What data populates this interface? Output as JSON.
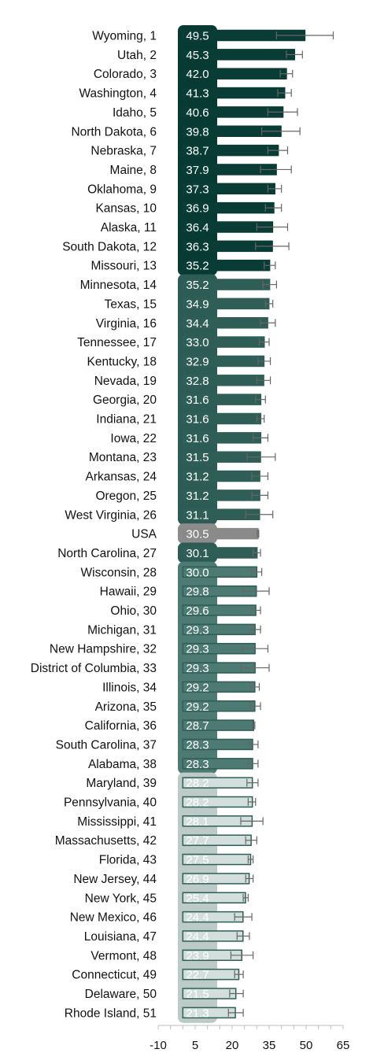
{
  "chart_data": {
    "type": "bar",
    "orientation": "horizontal",
    "categories": [
      "Wyoming, 1",
      "Utah, 2",
      "Colorado, 3",
      "Washington, 4",
      "Idaho, 5",
      "North Dakota, 6",
      "Nebraska, 7",
      "Maine, 8",
      "Oklahoma, 9",
      "Kansas, 10",
      "Alaska, 11",
      "South Dakota, 12",
      "Missouri, 13",
      "Minnesota, 14",
      "Texas, 15",
      "Virginia, 16",
      "Tennessee, 17",
      "Kentucky, 18",
      "Nevada, 19",
      "Georgia, 20",
      "Indiana, 21",
      "Iowa, 22",
      "Montana, 23",
      "Arkansas, 24",
      "Oregon, 25",
      "West Virginia, 26",
      "USA",
      "North Carolina, 27",
      "Wisconsin, 28",
      "Hawaii, 29",
      "Ohio, 30",
      "Michigan, 31",
      "New Hampshire, 32",
      "District of Columbia, 33",
      "Illinois, 34",
      "Arizona, 35",
      "California, 36",
      "South Carolina, 37",
      "Alabama, 38",
      "Maryland, 39",
      "Pennsylvania, 40",
      "Mississippi, 41",
      "Massachusetts, 42",
      "Florida, 43",
      "New Jersey, 44",
      "New York, 45",
      "New Mexico, 46",
      "Louisiana, 47",
      "Vermont, 48",
      "Connecticut, 49",
      "Delaware, 50",
      "Rhode Island, 51"
    ],
    "values": [
      49.5,
      45.3,
      42.0,
      41.3,
      40.6,
      39.8,
      38.7,
      37.9,
      37.3,
      36.9,
      36.4,
      36.3,
      35.2,
      35.2,
      34.9,
      34.4,
      33.0,
      32.9,
      32.8,
      31.6,
      31.6,
      31.6,
      31.5,
      31.2,
      31.2,
      31.1,
      30.5,
      30.1,
      30.0,
      29.8,
      29.6,
      29.3,
      29.3,
      29.3,
      29.2,
      29.2,
      28.7,
      28.3,
      28.3,
      28.2,
      28.2,
      28.1,
      27.7,
      27.5,
      26.9,
      25.4,
      24.4,
      24.4,
      23.9,
      22.7,
      21.5,
      21.3
    ],
    "value_labels": [
      "49.5",
      "45.3",
      "42.0",
      "41.3",
      "40.6",
      "39.8",
      "38.7",
      "37.9",
      "37.3",
      "36.9",
      "36.4",
      "36.3",
      "35.2",
      "35.2",
      "34.9",
      "34.4",
      "33.0",
      "32.9",
      "32.8",
      "31.6",
      "31.6",
      "31.6",
      "31.5",
      "31.2",
      "31.2",
      "31.1",
      "30.5",
      "30.1",
      "30.0",
      "29.8",
      "29.6",
      "29.3",
      "29.3",
      "29.3",
      "29.2",
      "29.2",
      "28.7",
      "28.3",
      "28.3",
      "28.2",
      "28.2",
      "28.1",
      "27.7",
      "27.5",
      "26.9",
      "25.4",
      "24.4",
      "24.4",
      "23.9",
      "22.7",
      "21.5",
      "21.3"
    ],
    "error_low": [
      38.0,
      42.0,
      39.5,
      38.5,
      34.5,
      32.0,
      34.5,
      31.5,
      34.5,
      33.5,
      30.0,
      29.5,
      33.0,
      32.5,
      33.5,
      31.5,
      31.0,
      30.5,
      30.0,
      29.5,
      30.0,
      28.5,
      26.0,
      28.0,
      28.0,
      25.5,
      30.2,
      28.5,
      28.0,
      24.5,
      28.0,
      27.5,
      24.0,
      23.5,
      27.5,
      27.5,
      28.2,
      27.0,
      26.5,
      26.0,
      26.5,
      23.5,
      25.5,
      26.5,
      25.5,
      24.5,
      21.0,
      22.0,
      19.5,
      21.0,
      19.0,
      18.5
    ],
    "error_high": [
      61.0,
      48.5,
      44.5,
      44.0,
      46.5,
      47.5,
      42.5,
      44.0,
      40.0,
      40.0,
      42.5,
      43.0,
      37.5,
      38.0,
      36.5,
      37.5,
      35.0,
      35.5,
      35.5,
      33.5,
      33.0,
      34.5,
      37.5,
      34.5,
      34.5,
      36.5,
      30.8,
      31.5,
      32.0,
      35.0,
      31.5,
      31.5,
      34.5,
      35.0,
      31.0,
      31.5,
      29.2,
      30.5,
      30.5,
      30.5,
      29.5,
      32.5,
      30.0,
      28.5,
      28.5,
      26.5,
      28.0,
      27.0,
      28.5,
      24.5,
      24.5,
      24.5
    ],
    "color_groups": [
      0,
      0,
      0,
      0,
      0,
      0,
      0,
      0,
      0,
      0,
      0,
      0,
      0,
      1,
      1,
      1,
      1,
      1,
      1,
      1,
      1,
      1,
      1,
      1,
      1,
      1,
      3,
      1,
      2,
      2,
      2,
      2,
      2,
      2,
      2,
      2,
      2,
      2,
      2,
      4,
      4,
      4,
      4,
      4,
      4,
      4,
      4,
      4,
      4,
      4,
      4,
      4
    ],
    "colors": {
      "group_fills": [
        "#083c34",
        "#2f5e56",
        "#4d7a72",
        "#8a8a8a",
        "#d2dfdc"
      ],
      "group_strokes": [
        "#083c34",
        "#2f5e56",
        "#2f5e56",
        "#8a8a8a",
        "#2f5e56"
      ],
      "error_bar": "#666666",
      "label_column": [
        "#063a32",
        "#2c5c55",
        "#4e7a74",
        "#8c8c8c",
        "#bccbc8"
      ],
      "axis": "#bfbfbf"
    },
    "x_ticks": [
      -10,
      5,
      20,
      35,
      50,
      65
    ],
    "x_tick_labels": [
      "-10",
      "5",
      "20",
      "35",
      "50",
      "65"
    ],
    "xlim": [
      -10,
      65
    ],
    "title": "",
    "xlabel": "",
    "ylabel": "",
    "grid": false,
    "legend": "none"
  }
}
